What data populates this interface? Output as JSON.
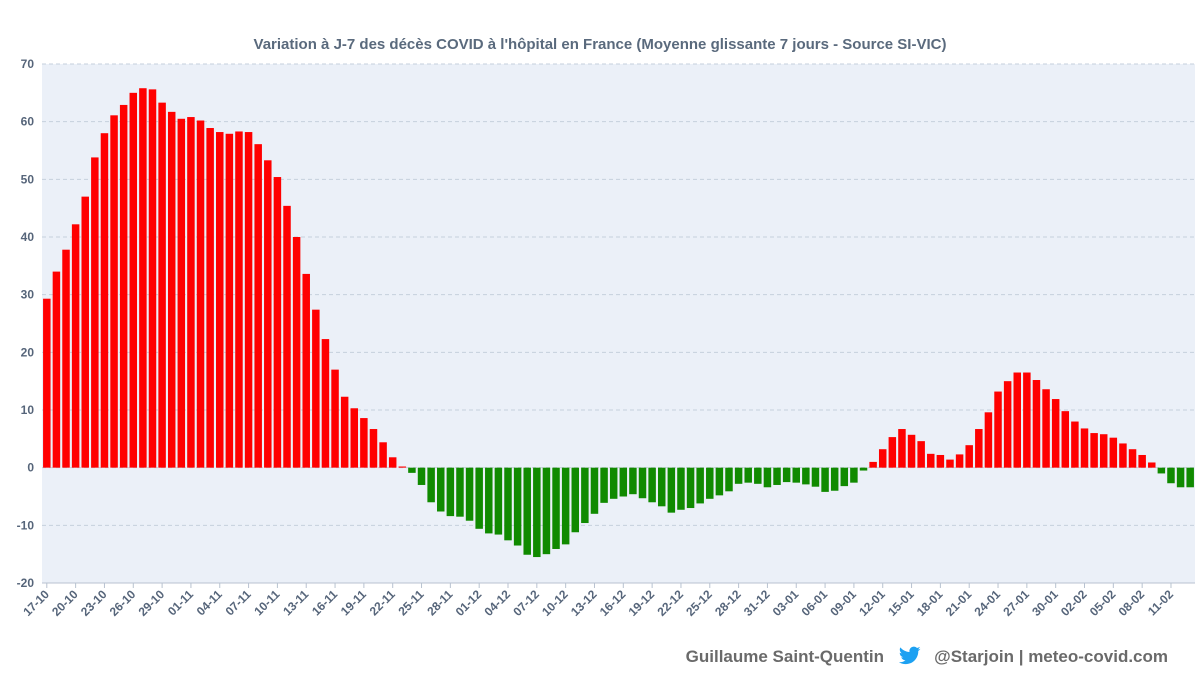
{
  "chart_data": {
    "type": "bar",
    "title": "Variation à J-7 des décès COVID à l'hôpital en France (Moyenne glissante 7 jours - Source SI-VIC)",
    "xlabel": "",
    "ylabel": "",
    "ylim": [
      -20,
      70
    ],
    "yticks": [
      -20,
      -10,
      0,
      10,
      20,
      30,
      40,
      50,
      60,
      70
    ],
    "grid": true,
    "x_tick_labels": [
      "17-10",
      "20-10",
      "23-10",
      "26-10",
      "29-10",
      "01-11",
      "04-11",
      "07-11",
      "10-11",
      "13-11",
      "16-11",
      "19-11",
      "22-11",
      "25-11",
      "28-11",
      "01-12",
      "04-12",
      "07-12",
      "10-12",
      "13-12",
      "16-12",
      "19-12",
      "22-12",
      "25-12",
      "28-12",
      "31-12",
      "03-01",
      "06-01",
      "09-01",
      "12-01",
      "15-01",
      "18-01",
      "21-01",
      "24-01",
      "27-01",
      "30-01",
      "02-02",
      "05-02",
      "08-02",
      "11-02"
    ],
    "values": [
      29.3,
      34.0,
      37.8,
      42.2,
      47.0,
      53.8,
      58.0,
      61.1,
      62.9,
      65.0,
      65.8,
      65.6,
      63.3,
      61.7,
      60.5,
      60.8,
      60.2,
      58.9,
      58.2,
      57.9,
      58.3,
      58.2,
      56.1,
      53.3,
      50.4,
      45.4,
      40.0,
      33.6,
      27.4,
      22.3,
      17.0,
      12.3,
      10.3,
      8.6,
      6.7,
      4.4,
      1.8,
      0.2,
      -0.9,
      -3.0,
      -6.0,
      -7.6,
      -8.4,
      -8.5,
      -9.2,
      -10.6,
      -11.4,
      -11.6,
      -12.6,
      -13.5,
      -15.1,
      -15.5,
      -15.0,
      -14.1,
      -13.3,
      -11.2,
      -9.6,
      -8.0,
      -6.1,
      -5.4,
      -5.0,
      -4.6,
      -5.3,
      -6.0,
      -6.7,
      -7.8,
      -7.3,
      -7.0,
      -6.2,
      -5.4,
      -4.8,
      -4.1,
      -2.8,
      -2.6,
      -2.8,
      -3.4,
      -3.0,
      -2.5,
      -2.6,
      -2.9,
      -3.3,
      -4.2,
      -4.0,
      -3.2,
      -2.6,
      -0.5,
      1.0,
      3.2,
      5.3,
      6.7,
      5.7,
      4.6,
      2.4,
      2.2,
      1.4,
      2.3,
      3.9,
      6.7,
      9.6,
      13.2,
      15.0,
      16.5,
      16.5,
      15.2,
      13.6,
      11.9,
      9.8,
      8.0,
      6.8,
      6.0,
      5.8,
      5.2,
      4.2,
      3.2,
      2.2,
      0.9,
      -1.0,
      -2.7,
      -3.4,
      -3.4
    ],
    "colors": {
      "positive": "#ff0000",
      "negative": "#108a00"
    }
  },
  "footer": {
    "author": "Guillaume Saint-Quentin",
    "credit": "@Starjoin | meteo-covid.com",
    "icon": "twitter-bird-icon",
    "icon_color": "#1da1f2"
  }
}
